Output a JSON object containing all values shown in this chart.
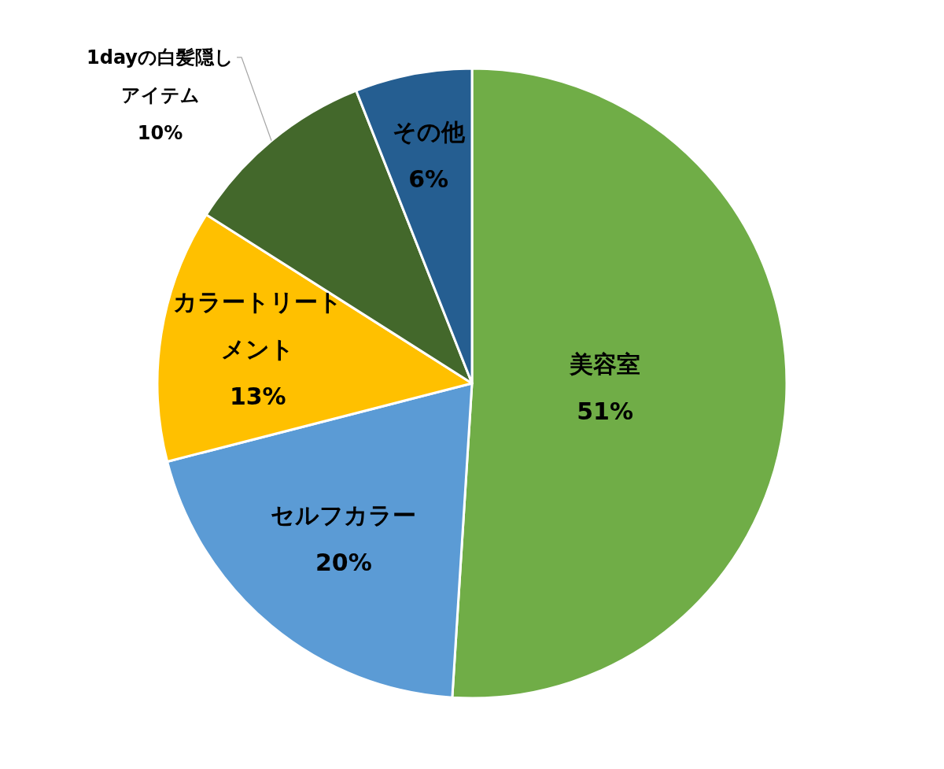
{
  "chart_data": {
    "type": "pie",
    "categories": [
      "美容室",
      "セルフカラー",
      "カラートリートメント",
      "1dayの白髪隠しアイテム",
      "その他"
    ],
    "values": [
      51,
      20,
      13,
      10,
      6
    ],
    "value_labels": [
      "51%",
      "20%",
      "13%",
      "10%",
      "6%"
    ],
    "colors": [
      "#70ad47",
      "#5b9bd5",
      "#ffc000",
      "#43682b",
      "#255e91"
    ]
  }
}
